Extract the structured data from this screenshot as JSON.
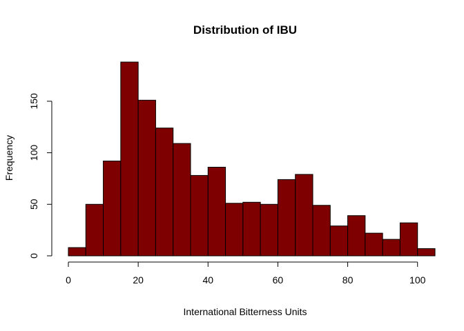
{
  "chart_data": {
    "type": "histogram",
    "title": "Distribution of IBU",
    "xlabel": "International Bitterness Units",
    "ylabel": "Frequency",
    "bar_color": "#7f0000",
    "bin_width": 5,
    "bins": [
      {
        "start": 0,
        "end": 5,
        "count": 8
      },
      {
        "start": 5,
        "end": 10,
        "count": 50
      },
      {
        "start": 10,
        "end": 15,
        "count": 92
      },
      {
        "start": 15,
        "end": 20,
        "count": 188
      },
      {
        "start": 20,
        "end": 25,
        "count": 151
      },
      {
        "start": 25,
        "end": 30,
        "count": 124
      },
      {
        "start": 30,
        "end": 35,
        "count": 109
      },
      {
        "start": 35,
        "end": 40,
        "count": 78
      },
      {
        "start": 40,
        "end": 45,
        "count": 86
      },
      {
        "start": 45,
        "end": 50,
        "count": 51
      },
      {
        "start": 50,
        "end": 55,
        "count": 52
      },
      {
        "start": 55,
        "end": 60,
        "count": 50
      },
      {
        "start": 60,
        "end": 65,
        "count": 74
      },
      {
        "start": 65,
        "end": 70,
        "count": 79
      },
      {
        "start": 70,
        "end": 75,
        "count": 49
      },
      {
        "start": 75,
        "end": 80,
        "count": 29
      },
      {
        "start": 80,
        "end": 85,
        "count": 39
      },
      {
        "start": 85,
        "end": 90,
        "count": 22
      },
      {
        "start": 90,
        "end": 95,
        "count": 16
      },
      {
        "start": 95,
        "end": 100,
        "count": 32
      },
      {
        "start": 100,
        "end": 105,
        "count": 7
      }
    ],
    "x_ticks": [
      0,
      20,
      40,
      60,
      80,
      100
    ],
    "y_ticks": [
      0,
      50,
      100,
      150
    ],
    "xlim": [
      0,
      105
    ],
    "ylim": [
      0,
      188
    ],
    "grid": false,
    "legend": "none"
  }
}
